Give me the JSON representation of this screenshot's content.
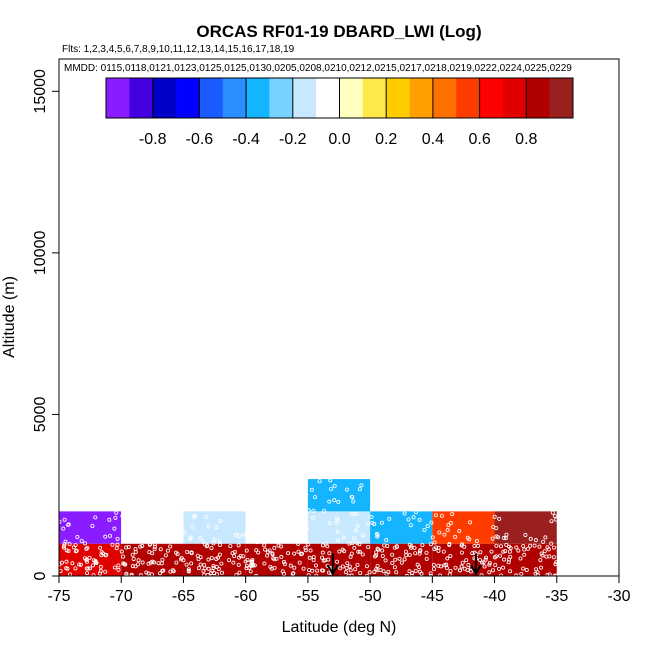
{
  "chart_data": {
    "type": "heatmap",
    "title": "ORCAS RF01-19 DBARD_LWI (Log)",
    "flights_note": "Flts: 1,2,3,4,5,6,7,8,9,10,11,12,13,14,15,16,17,18,19",
    "dates_note": "MMDD: 0115,0118,0121,0123,0125,0125,0130,0205,0208,0210,0212,0215,0217,0218,0219,0222,0224,0225,0229",
    "xlabel": "Latitude (deg N)",
    "ylabel": "Altitude (m)",
    "xlim": [
      -75,
      -30
    ],
    "ylim": [
      0,
      16000
    ],
    "x_ticks": [
      -75,
      -70,
      -65,
      -60,
      -55,
      -50,
      -45,
      -40,
      -35,
      -30
    ],
    "y_ticks": [
      0,
      5000,
      10000,
      15000
    ],
    "colorbar": {
      "range": [
        -1.0,
        1.0
      ],
      "tick_values": [
        -0.8,
        -0.6,
        -0.4,
        -0.2,
        0.0,
        0.2,
        0.4,
        0.6,
        0.8
      ],
      "tick_labels": [
        "-0.8",
        "-0.6",
        "-0.4",
        "-0.2",
        "0.0",
        "0.2",
        "0.4",
        "0.6",
        "0.8"
      ],
      "colors": [
        "#8a1cff",
        "#4400e0",
        "#0000c8",
        "#0000ff",
        "#1a5cff",
        "#2a90ff",
        "#14b4ff",
        "#78d2ff",
        "#c8e8ff",
        "#ffffff",
        "#ffffc0",
        "#ffe84a",
        "#ffcc00",
        "#ffa000",
        "#ff7000",
        "#ff3c00",
        "#ff0000",
        "#e00000",
        "#b00000",
        "#9a2020"
      ]
    },
    "cells": [
      {
        "lat0": -75,
        "lat1": -70,
        "alt0": 0,
        "alt1": 1000,
        "value": 0.78
      },
      {
        "lat0": -70,
        "lat1": -65,
        "alt0": 0,
        "alt1": 1000,
        "value": 0.8
      },
      {
        "lat0": -65,
        "lat1": -60,
        "alt0": 0,
        "alt1": 1000,
        "value": 0.82
      },
      {
        "lat0": -60,
        "lat1": -55,
        "alt0": 0,
        "alt1": 1000,
        "value": 0.82
      },
      {
        "lat0": -55,
        "lat1": -50,
        "alt0": 0,
        "alt1": 1000,
        "value": 0.82
      },
      {
        "lat0": -50,
        "lat1": -45,
        "alt0": 0,
        "alt1": 1000,
        "value": 0.82
      },
      {
        "lat0": -45,
        "lat1": -40,
        "alt0": 0,
        "alt1": 1000,
        "value": 0.8
      },
      {
        "lat0": -40,
        "lat1": -35,
        "alt0": 0,
        "alt1": 1000,
        "value": 0.8
      },
      {
        "lat0": -75,
        "lat1": -70,
        "alt0": 1000,
        "alt1": 2000,
        "value": -0.95
      },
      {
        "lat0": -70,
        "lat1": -65,
        "alt0": 1000,
        "alt1": 2000,
        "value": -0.1
      },
      {
        "lat0": -65,
        "lat1": -60,
        "alt0": 1000,
        "alt1": 2000,
        "value": -0.12
      },
      {
        "lat0": -60,
        "lat1": -55,
        "alt0": 1000,
        "alt1": 2000,
        "value": -0.03
      },
      {
        "lat0": -55,
        "lat1": -50,
        "alt0": 1000,
        "alt1": 2000,
        "value": -0.12
      },
      {
        "lat0": -50,
        "lat1": -45,
        "alt0": 1000,
        "alt1": 2000,
        "value": -0.35
      },
      {
        "lat0": -45,
        "lat1": -40,
        "alt0": 1000,
        "alt1": 2000,
        "value": 0.5
      },
      {
        "lat0": -40,
        "lat1": -35,
        "alt0": 1000,
        "alt1": 2000,
        "value": 0.95
      },
      {
        "lat0": -55,
        "lat1": -50,
        "alt0": 2000,
        "alt1": 3000,
        "value": -0.35
      }
    ],
    "markers": [
      {
        "type": "arrow",
        "lat": -53,
        "alt_top": 700,
        "alt_bottom": 0
      },
      {
        "type": "arrow",
        "lat": -41.5,
        "alt_top": 700,
        "alt_bottom": 0
      }
    ],
    "grid": false,
    "legend": "colorbar at top"
  }
}
